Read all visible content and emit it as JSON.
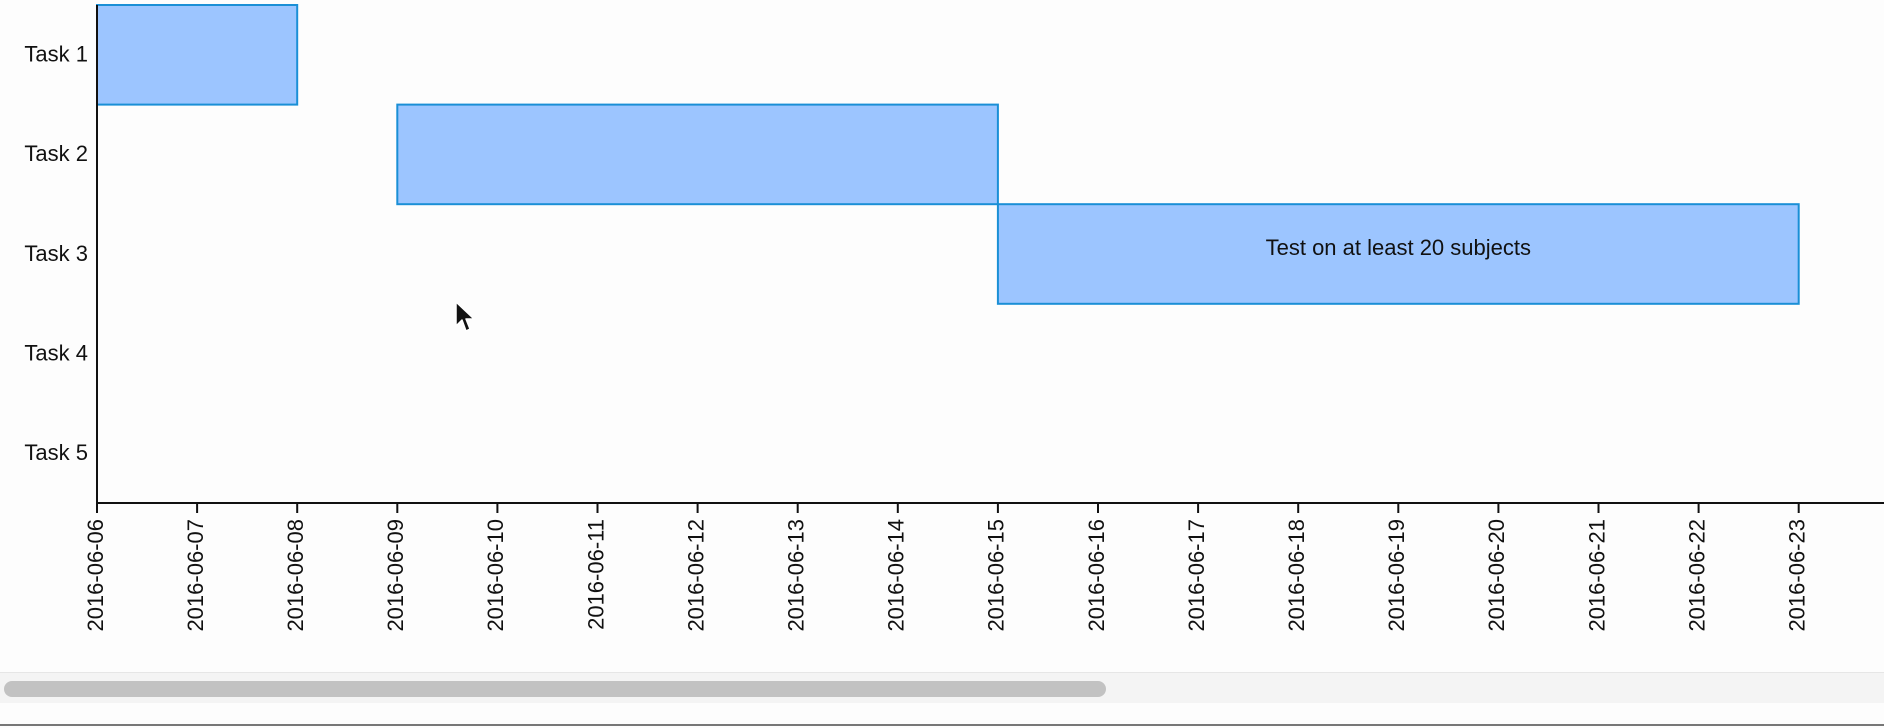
{
  "chart_data": {
    "type": "gantt",
    "tasks": [
      "Task 1",
      "Task 2",
      "Task 3",
      "Task 4",
      "Task 5"
    ],
    "bars": [
      {
        "task": "Task 1",
        "start": "2016-06-06",
        "end": "2016-06-08",
        "label": ""
      },
      {
        "task": "Task 2",
        "start": "2016-06-09",
        "end": "2016-06-15",
        "label": ""
      },
      {
        "task": "Task 3",
        "start": "2016-06-15",
        "end": "2016-06-23",
        "label": "Test on at least 20 subjects"
      }
    ],
    "x_ticks": [
      "2016-06-06",
      "2016-06-07",
      "2016-06-08",
      "2016-06-09",
      "2016-06-10",
      "2016-06-11",
      "2016-06-12",
      "2016-06-13",
      "2016-06-14",
      "2016-06-15",
      "2016-06-16",
      "2016-06-17",
      "2016-06-18",
      "2016-06-19",
      "2016-06-20",
      "2016-06-21",
      "2016-06-22",
      "2016-06-23"
    ],
    "xlim": [
      "2016-06-06",
      "2016-06-23"
    ],
    "bar_fill": "#9cc5ff",
    "bar_stroke": "#1a8fd6",
    "grid": false,
    "legend": "none"
  },
  "scrollbar": {
    "thumb_fraction": 0.585
  }
}
